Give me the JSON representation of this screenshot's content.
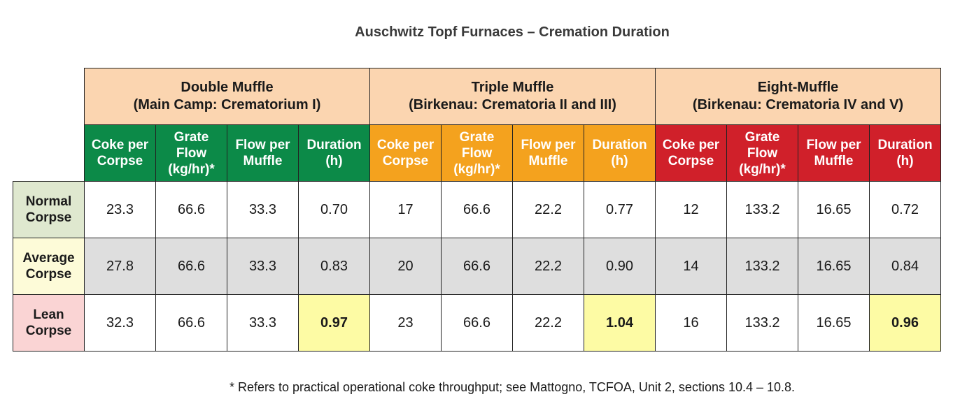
{
  "title": "Auschwitz Topf Furnaces – Cremation Duration",
  "groups": [
    {
      "line1": "Double Muffle",
      "line2": "(Main Camp: Crematorium I)"
    },
    {
      "line1": "Triple Muffle",
      "line2": "(Birkenau: Crematoria II and III)"
    },
    {
      "line1": "Eight-Muffle",
      "line2": "(Birkenau: Crematoria IV and V)"
    }
  ],
  "columns": [
    {
      "l1": "Coke per",
      "l2": "Corpse",
      "l3": ""
    },
    {
      "l1": "Grate",
      "l2": "Flow",
      "l3": "(kg/hr)*"
    },
    {
      "l1": "Flow per",
      "l2": "Muffle",
      "l3": ""
    },
    {
      "l1": "Duration",
      "l2": "(h)",
      "l3": ""
    }
  ],
  "rows": [
    {
      "l1": "Normal",
      "l2": "Corpse",
      "values": [
        "23.3",
        "66.6",
        "33.3",
        "0.70",
        "17",
        "66.6",
        "22.2",
        "0.77",
        "12",
        "133.2",
        "16.65",
        "0.72"
      ]
    },
    {
      "l1": "Average",
      "l2": "Corpse",
      "values": [
        "27.8",
        "66.6",
        "33.3",
        "0.83",
        "20",
        "66.6",
        "22.2",
        "0.90",
        "14",
        "133.2",
        "16.65",
        "0.84"
      ]
    },
    {
      "l1": "Lean",
      "l2": "Corpse",
      "values": [
        "32.3",
        "66.6",
        "33.3",
        "0.97",
        "23",
        "66.6",
        "22.2",
        "1.04",
        "16",
        "133.2",
        "16.65",
        "0.96"
      ]
    }
  ],
  "footnote": "* Refers to practical operational coke throughput; see Mattogno, TCFOA, Unit 2, sections 10.4 – 10.8.",
  "colors": {
    "group_header": "#fbd5b0",
    "double_muffle": "#0c8a48",
    "triple_muffle": "#f4a21e",
    "eight_muffle": "#d0202a",
    "highlight": "#fdfba4"
  }
}
